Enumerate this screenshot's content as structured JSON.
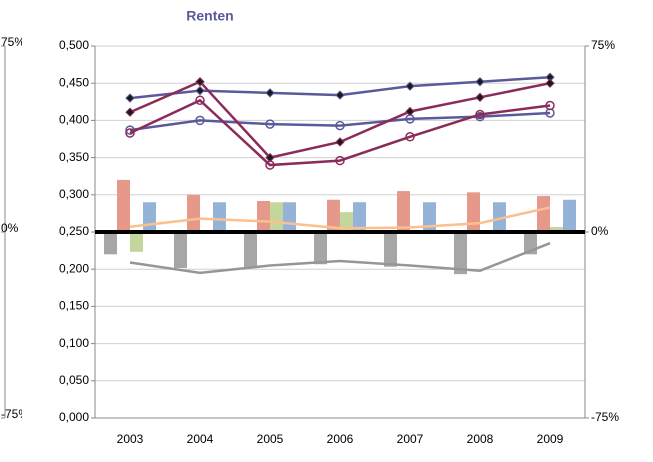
{
  "chart_data": {
    "type": "combo",
    "title": "Renten",
    "categories": [
      "2003",
      "2004",
      "2005",
      "2006",
      "2007",
      "2008",
      "2009"
    ],
    "ylim": [
      0,
      0.5
    ],
    "yticks": [
      {
        "value": 0,
        "label": "0,000"
      },
      {
        "value": 0.05,
        "label": "0,050"
      },
      {
        "value": 0.1,
        "label": "0,100"
      },
      {
        "value": 0.15,
        "label": "0,150"
      },
      {
        "value": 0.2,
        "label": "0,200"
      },
      {
        "value": 0.25,
        "label": "0,250"
      },
      {
        "value": 0.3,
        "label": "0,300"
      },
      {
        "value": 0.35,
        "label": "0,350"
      },
      {
        "value": 0.4,
        "label": "0,400"
      },
      {
        "value": 0.45,
        "label": "0,450"
      },
      {
        "value": 0.5,
        "label": "0,500"
      }
    ],
    "y2lim": [
      -75,
      75
    ],
    "y2ticks": [
      {
        "value": -75,
        "label": "-75%"
      },
      {
        "value": 0,
        "label": "0%"
      },
      {
        "value": 75,
        "label": "75%"
      }
    ],
    "grid": true,
    "series": [
      {
        "type": "bar",
        "axis": "y2",
        "color": "#a6a6a6",
        "values": [
          -9,
          -14.5,
          -14.5,
          -13,
          -14,
          -17,
          -9
        ]
      },
      {
        "type": "bar",
        "axis": "y2",
        "color": "#e6988a",
        "values": [
          21,
          15,
          12.5,
          13,
          16.5,
          16,
          14.5
        ]
      },
      {
        "type": "bar",
        "axis": "y2",
        "color": "#c3d69b",
        "values": [
          -8,
          0,
          12,
          8,
          0,
          0,
          2
        ]
      },
      {
        "type": "bar",
        "axis": "y2",
        "color": "#95b3d7",
        "values": [
          12,
          12,
          12,
          12,
          12,
          12,
          13
        ]
      },
      {
        "type": "line",
        "color": "#fac090",
        "values": [
          0.257,
          0.268,
          0.264,
          0.255,
          0.256,
          0.262,
          0.283
        ]
      },
      {
        "type": "line",
        "color": "#969696",
        "values": [
          0.209,
          0.195,
          0.205,
          0.211,
          0.205,
          0.198,
          0.235
        ]
      },
      {
        "type": "line",
        "color": "#5a5a9a",
        "marker": "diamond",
        "values": [
          0.43,
          0.44,
          0.437,
          0.434,
          0.446,
          0.452,
          0.458
        ]
      },
      {
        "type": "line",
        "color": "#5a5a9a",
        "marker": "circle",
        "values": [
          0.387,
          0.4,
          0.395,
          0.393,
          0.402,
          0.405,
          0.41
        ]
      },
      {
        "type": "line",
        "color": "#8b2b5a",
        "marker": "diamond",
        "values": [
          0.411,
          0.452,
          0.35,
          0.371,
          0.412,
          0.431,
          0.45
        ]
      },
      {
        "type": "line",
        "color": "#8b2b5a",
        "marker": "circle",
        "values": [
          0.383,
          0.427,
          0.34,
          0.346,
          0.378,
          0.408,
          0.42
        ]
      }
    ]
  }
}
